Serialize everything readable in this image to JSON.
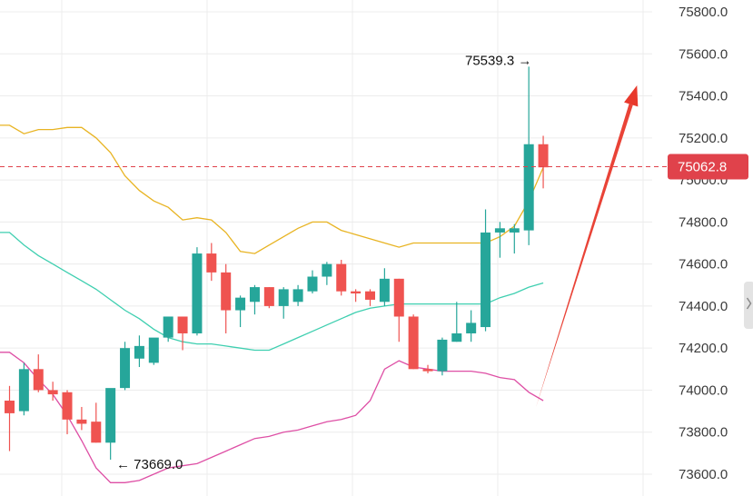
{
  "chart_data": {
    "type": "candlestick",
    "title": "",
    "xlabel": "",
    "ylabel": "",
    "ylim": [
      73550,
      75850
    ],
    "y_ticks": [
      "75800.0",
      "75600.0",
      "75400.0",
      "75200.0",
      "75000.0",
      "74800.0",
      "74600.0",
      "74400.0",
      "74200.0",
      "74000.0",
      "73800.0",
      "73600.0"
    ],
    "grid": true,
    "colors": {
      "up": "#26a69a",
      "down": "#ef5350",
      "upper_band": "#e8b423",
      "middle_band": "#3fcfb0",
      "lower_band": "#de4fa5",
      "current_price": "#e0424b",
      "trend_arrow": "#e8392c",
      "grid": "#ececec"
    },
    "candles": [
      {
        "o": 73950,
        "h": 74020,
        "l": 73710,
        "c": 73890
      },
      {
        "o": 73900,
        "h": 74130,
        "l": 73880,
        "c": 74100
      },
      {
        "o": 74100,
        "h": 74170,
        "l": 73990,
        "c": 74000
      },
      {
        "o": 74000,
        "h": 74040,
        "l": 73950,
        "c": 73980
      },
      {
        "o": 73990,
        "h": 74000,
        "l": 73790,
        "c": 73860
      },
      {
        "o": 73860,
        "h": 73920,
        "l": 73810,
        "c": 73840
      },
      {
        "o": 73850,
        "h": 73940,
        "l": 73750,
        "c": 73750
      },
      {
        "o": 73750,
        "h": 74000,
        "l": 73669,
        "c": 74010
      },
      {
        "o": 74010,
        "h": 74230,
        "l": 74000,
        "c": 74200
      },
      {
        "o": 74150,
        "h": 74260,
        "l": 74110,
        "c": 74210
      },
      {
        "o": 74130,
        "h": 74230,
        "l": 74120,
        "c": 74250
      },
      {
        "o": 74250,
        "h": 74350,
        "l": 74230,
        "c": 74350
      },
      {
        "o": 74350,
        "h": 74350,
        "l": 74190,
        "c": 74270
      },
      {
        "o": 74270,
        "h": 74680,
        "l": 74260,
        "c": 74650
      },
      {
        "o": 74650,
        "h": 74700,
        "l": 74520,
        "c": 74560
      },
      {
        "o": 74560,
        "h": 74600,
        "l": 74270,
        "c": 74380
      },
      {
        "o": 74380,
        "h": 74450,
        "l": 74300,
        "c": 74440
      },
      {
        "o": 74420,
        "h": 74500,
        "l": 74360,
        "c": 74490
      },
      {
        "o": 74490,
        "h": 74490,
        "l": 74390,
        "c": 74400
      },
      {
        "o": 74400,
        "h": 74490,
        "l": 74340,
        "c": 74480
      },
      {
        "o": 74420,
        "h": 74500,
        "l": 74400,
        "c": 74480
      },
      {
        "o": 74470,
        "h": 74570,
        "l": 74460,
        "c": 74540
      },
      {
        "o": 74540,
        "h": 74610,
        "l": 74500,
        "c": 74600
      },
      {
        "o": 74600,
        "h": 74620,
        "l": 74450,
        "c": 74470
      },
      {
        "o": 74470,
        "h": 74480,
        "l": 74420,
        "c": 74460
      },
      {
        "o": 74470,
        "h": 74480,
        "l": 74400,
        "c": 74430
      },
      {
        "o": 74420,
        "h": 74580,
        "l": 74400,
        "c": 74530
      },
      {
        "o": 74530,
        "h": 74530,
        "l": 74230,
        "c": 74350
      },
      {
        "o": 74350,
        "h": 74360,
        "l": 74100,
        "c": 74100
      },
      {
        "o": 74100,
        "h": 74120,
        "l": 74080,
        "c": 74090
      },
      {
        "o": 74090,
        "h": 74250,
        "l": 74070,
        "c": 74240
      },
      {
        "o": 74230,
        "h": 74420,
        "l": 74230,
        "c": 74270
      },
      {
        "o": 74270,
        "h": 74380,
        "l": 74230,
        "c": 74320
      },
      {
        "o": 74300,
        "h": 74860,
        "l": 74280,
        "c": 74750
      },
      {
        "o": 74750,
        "h": 74800,
        "l": 74630,
        "c": 74770
      },
      {
        "o": 74750,
        "h": 74790,
        "l": 74650,
        "c": 74770
      },
      {
        "o": 74760,
        "h": 75539.3,
        "l": 74690,
        "c": 75170
      },
      {
        "o": 75170,
        "h": 75210,
        "l": 74960,
        "c": 75060
      }
    ],
    "series": [
      {
        "key": "upper",
        "values": [
          75260,
          75220,
          75240,
          75240,
          75250,
          75250,
          75200,
          75130,
          75020,
          74950,
          74900,
          74870,
          74810,
          74820,
          74810,
          74750,
          74660,
          74650,
          74690,
          74730,
          74770,
          74800,
          74800,
          74760,
          74740,
          74720,
          74700,
          74680,
          74700,
          74700,
          74700,
          74700,
          74700,
          74700,
          74730,
          74780,
          74900,
          75060
        ]
      },
      {
        "key": "middle",
        "values": [
          74750,
          74690,
          74640,
          74600,
          74560,
          74520,
          74480,
          74430,
          74380,
          74340,
          74290,
          74250,
          74230,
          74220,
          74220,
          74210,
          74200,
          74190,
          74190,
          74220,
          74250,
          74280,
          74310,
          74340,
          74370,
          74390,
          74400,
          74410,
          74410,
          74410,
          74410,
          74410,
          74410,
          74410,
          74440,
          74460,
          74490,
          74510
        ]
      },
      {
        "key": "lower",
        "values": [
          74180,
          74130,
          74050,
          73980,
          73880,
          73760,
          73630,
          73560,
          73560,
          73570,
          73600,
          73630,
          73640,
          73650,
          73680,
          73710,
          73740,
          73770,
          73780,
          73800,
          73810,
          73830,
          73850,
          73860,
          73880,
          73950,
          74100,
          74140,
          74110,
          74100,
          74090,
          74090,
          74090,
          74080,
          74060,
          74050,
          73990,
          73950
        ]
      }
    ],
    "annotations": {
      "high_label": "75539.3 →",
      "high_value": 75539.3,
      "low_label": "← 73669.0",
      "low_value": 73669.0,
      "current_price_label": "75062.8",
      "current_price": 75062.8
    },
    "trend_arrow": {
      "from": {
        "candle_index": 36.5,
        "price": 73920
      },
      "to": {
        "candle_index": 43.5,
        "price": 75450
      }
    }
  }
}
